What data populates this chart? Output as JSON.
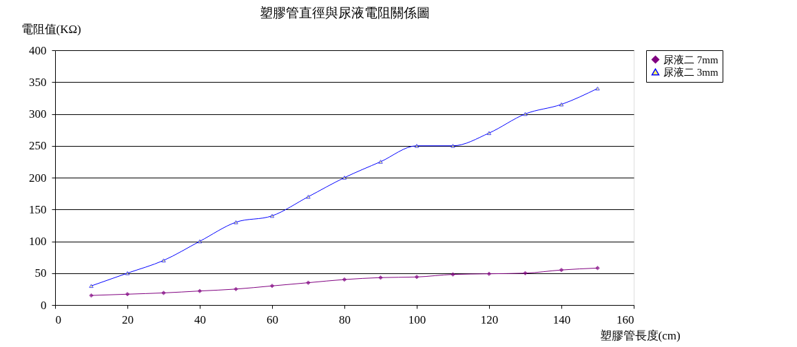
{
  "chart_data": {
    "type": "line",
    "title": "塑膠管直徑與尿液電阻關係圖",
    "xlabel": "塑膠管長度(cm)",
    "ylabel": "電阻值(KΩ)",
    "x": [
      10,
      20,
      30,
      40,
      50,
      60,
      70,
      80,
      90,
      100,
      110,
      120,
      130,
      140,
      150
    ],
    "series": [
      {
        "name": "尿液二 7mm",
        "color": "#800080",
        "marker": "diamond",
        "values": [
          15,
          17,
          19,
          22,
          25,
          30,
          35,
          40,
          43,
          44,
          48,
          49,
          50,
          55,
          58
        ]
      },
      {
        "name": "尿液二 3mm",
        "color": "#0000ff",
        "marker": "triangle",
        "values": [
          30,
          50,
          70,
          100,
          130,
          140,
          170,
          200,
          225,
          250,
          250,
          270,
          300,
          315,
          340
        ]
      }
    ],
    "xlim": [
      0,
      160
    ],
    "xticks": [
      0,
      20,
      40,
      60,
      80,
      100,
      120,
      140,
      160
    ],
    "ylim": [
      0,
      400
    ],
    "yticks": [
      0,
      50,
      100,
      150,
      200,
      250,
      300,
      350,
      400
    ],
    "grid": "y",
    "legend": "right"
  }
}
